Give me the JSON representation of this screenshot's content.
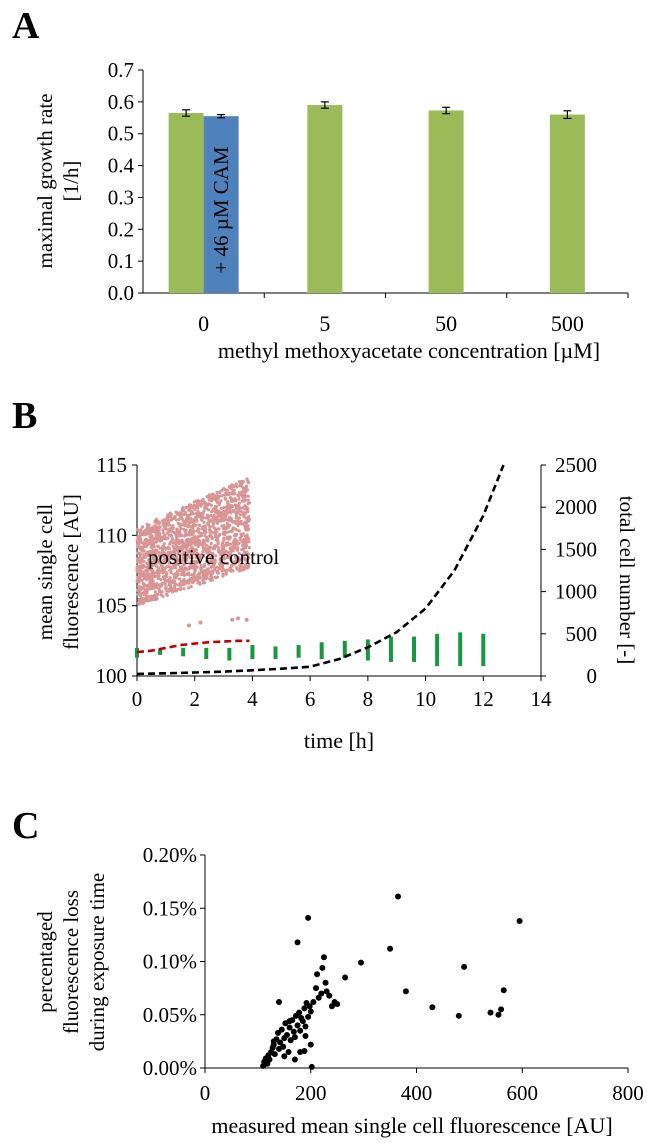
{
  "panels": {
    "a": "A",
    "b": "B",
    "c": "C"
  },
  "chart_data": [
    {
      "type": "bar",
      "ylabel": "maximal growth rate [1/h]",
      "xlabel": "methyl methoxyacetate concentration [µM]",
      "ylim": [
        0,
        0.7
      ],
      "yticks": [
        "0.0",
        "0.1",
        "0.2",
        "0.3",
        "0.4",
        "0.5",
        "0.6",
        "0.7"
      ],
      "categories": [
        "0",
        "5",
        "50",
        "500"
      ],
      "bars": [
        {
          "category": "0",
          "value": 0.565,
          "error": 0.01,
          "color": "#9bbb59"
        },
        {
          "category": "0",
          "value": 0.555,
          "error": 0.005,
          "color": "#4f81bd",
          "label": "+ 46 µM CAM"
        },
        {
          "category": "5",
          "value": 0.59,
          "error": 0.01,
          "color": "#9bbb59"
        },
        {
          "category": "50",
          "value": 0.573,
          "error": 0.01,
          "color": "#9bbb59"
        },
        {
          "category": "500",
          "value": 0.56,
          "error": 0.012,
          "color": "#9bbb59"
        }
      ],
      "grid": false
    },
    {
      "type": "scatter",
      "xlabel": "time [h]",
      "ylabel": "mean single cell fluorescence [AU]",
      "y2label": "total cell number [-]",
      "xlim": [
        0,
        14
      ],
      "xticks": [
        "0",
        "2",
        "4",
        "6",
        "8",
        "10",
        "12",
        "14"
      ],
      "ylim": [
        100,
        115
      ],
      "yticks": [
        "100",
        "105",
        "110",
        "115"
      ],
      "y2lim": [
        0,
        2500
      ],
      "y2ticks": [
        "0",
        "500",
        "1000",
        "1500",
        "2000",
        "2500"
      ],
      "annotation": "positive control",
      "positive_control": {
        "color": "#d99594",
        "time_range": [
          0,
          3.9
        ],
        "lower": [
          105,
          107.7
        ],
        "upper": [
          110.5,
          114.2
        ]
      },
      "outliers": [
        {
          "x": 1.8,
          "y": 103.6
        },
        {
          "x": 2.2,
          "y": 103.8
        },
        {
          "x": 3.3,
          "y": 104
        },
        {
          "x": 3.5,
          "y": 104.1
        },
        {
          "x": 3.8,
          "y": 104
        },
        {
          "x": 0.1,
          "y": 110.3
        }
      ],
      "sample_bars": {
        "color": "#1a9641",
        "ranges": [
          {
            "t": 0,
            "lo": 101.3,
            "hi": 102.0
          },
          {
            "t": 0.8,
            "lo": 101.5,
            "hi": 101.9
          },
          {
            "t": 1.6,
            "lo": 101.4,
            "hi": 102.0
          },
          {
            "t": 2.4,
            "lo": 101.2,
            "hi": 102.0
          },
          {
            "t": 3.2,
            "lo": 101.1,
            "hi": 102.0
          },
          {
            "t": 4.0,
            "lo": 101.2,
            "hi": 102.2
          },
          {
            "t": 4.8,
            "lo": 101.2,
            "hi": 102.1
          },
          {
            "t": 5.6,
            "lo": 101.3,
            "hi": 102.2
          },
          {
            "t": 6.4,
            "lo": 101.2,
            "hi": 102.4
          },
          {
            "t": 7.2,
            "lo": 101.3,
            "hi": 102.5
          },
          {
            "t": 8.0,
            "lo": 101.1,
            "hi": 102.6
          },
          {
            "t": 8.8,
            "lo": 101.0,
            "hi": 102.8
          },
          {
            "t": 9.6,
            "lo": 101.0,
            "hi": 102.8
          },
          {
            "t": 10.4,
            "lo": 100.7,
            "hi": 103.0
          },
          {
            "t": 11.2,
            "lo": 100.7,
            "hi": 103.1
          },
          {
            "t": 12.0,
            "lo": 100.7,
            "hi": 103.0
          }
        ]
      },
      "series": [
        {
          "color": "#c00000",
          "style": "dashed",
          "axis": "left",
          "x": [
            0,
            0.5,
            1,
            1.5,
            2,
            2.5,
            3,
            3.5,
            3.9
          ],
          "y": [
            101.7,
            101.8,
            102.0,
            102.2,
            102.3,
            102.4,
            102.45,
            102.5,
            102.5
          ]
        },
        {
          "color": "#000000",
          "style": "dashed",
          "axis": "right",
          "x": [
            0,
            1,
            2,
            3,
            4,
            5,
            6,
            7,
            8,
            9,
            10,
            11,
            12,
            12.7
          ],
          "y": [
            25,
            32,
            41,
            52,
            67,
            86,
            110,
            200,
            340,
            520,
            800,
            1250,
            1900,
            2500
          ]
        }
      ]
    },
    {
      "type": "scatter",
      "xlabel": "measured mean single cell fluorescence [AU]",
      "ylabel": "percentaged fluorescence loss during exposure time",
      "xlim": [
        0,
        800
      ],
      "xticks": [
        "0",
        "200",
        "400",
        "600",
        "800"
      ],
      "ylim": [
        0,
        0.2
      ],
      "yticks": [
        "0.00%",
        "0.05%",
        "0.10%",
        "0.15%",
        "0.20%"
      ],
      "points": [
        [
          110,
          0.002
        ],
        [
          112,
          0.006
        ],
        [
          115,
          0.009
        ],
        [
          118,
          0.004
        ],
        [
          120,
          0.012
        ],
        [
          122,
          0.008
        ],
        [
          125,
          0.015
        ],
        [
          128,
          0.019
        ],
        [
          130,
          0.022
        ],
        [
          132,
          0.013
        ],
        [
          135,
          0.027
        ],
        [
          138,
          0.033
        ],
        [
          140,
          0.018
        ],
        [
          142,
          0.024
        ],
        [
          145,
          0.036
        ],
        [
          148,
          0.02
        ],
        [
          150,
          0.028
        ],
        [
          152,
          0.042
        ],
        [
          155,
          0.031
        ],
        [
          158,
          0.015
        ],
        [
          160,
          0.038
        ],
        [
          162,
          0.026
        ],
        [
          165,
          0.045
        ],
        [
          168,
          0.034
        ],
        [
          170,
          0.029
        ],
        [
          172,
          0.049
        ],
        [
          175,
          0.04
        ],
        [
          178,
          0.052
        ],
        [
          180,
          0.035
        ],
        [
          182,
          0.047
        ],
        [
          185,
          0.044
        ],
        [
          188,
          0.056
        ],
        [
          190,
          0.039
        ],
        [
          192,
          0.061
        ],
        [
          195,
          0.048
        ],
        [
          198,
          0.058
        ],
        [
          200,
          0.053
        ],
        [
          205,
          0.062
        ],
        [
          210,
          0.075
        ],
        [
          212,
          0.088
        ],
        [
          215,
          0.066
        ],
        [
          220,
          0.07
        ],
        [
          222,
          0.094
        ],
        [
          225,
          0.104
        ],
        [
          228,
          0.08
        ],
        [
          230,
          0.072
        ],
        [
          235,
          0.068
        ],
        [
          240,
          0.058
        ],
        [
          245,
          0.062
        ],
        [
          250,
          0.06
        ],
        [
          140,
          0.062
        ],
        [
          150,
          0.011
        ],
        [
          170,
          0.008
        ],
        [
          175,
          0.118
        ],
        [
          195,
          0.141
        ],
        [
          180,
          0.015
        ],
        [
          200,
          0.022
        ],
        [
          190,
          0.03
        ],
        [
          188,
          0.016
        ],
        [
          202,
          0.001
        ],
        [
          265,
          0.085
        ],
        [
          295,
          0.099
        ],
        [
          350,
          0.112
        ],
        [
          365,
          0.161
        ],
        [
          380,
          0.072
        ],
        [
          430,
          0.057
        ],
        [
          480,
          0.049
        ],
        [
          490,
          0.095
        ],
        [
          540,
          0.052
        ],
        [
          555,
          0.05
        ],
        [
          560,
          0.055
        ],
        [
          565,
          0.073
        ],
        [
          595,
          0.138
        ],
        [
          160,
          0.044
        ],
        [
          130,
          0.025
        ]
      ],
      "grid": false
    }
  ]
}
